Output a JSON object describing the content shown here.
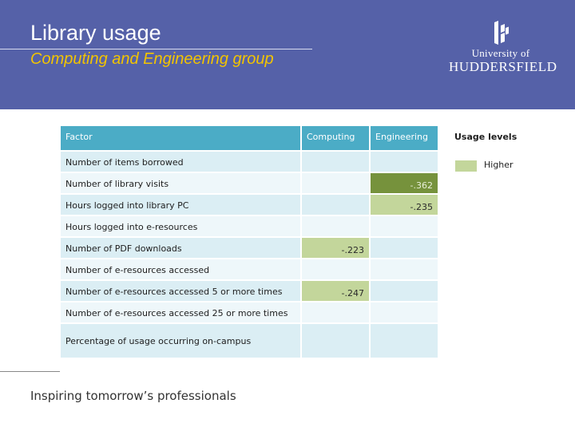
{
  "header": {
    "title": "Library usage",
    "subtitle": "Computing and Engineering group",
    "logo": {
      "line1": "University of",
      "line2": "HUDDERSFIELD",
      "icon": "university-crest-icon"
    }
  },
  "colors": {
    "header_bg": "#5561a8",
    "subtitle": "#f2c400",
    "table_header": "#4bacc6",
    "row_even": "#dbeef4",
    "row_odd": "#eef7fa",
    "highlight_strong": "#76923c",
    "highlight_light": "#c3d69b"
  },
  "table": {
    "headers": [
      "Factor",
      "Computing",
      "Engineering"
    ],
    "rows": [
      {
        "factor": "Number of items borrowed",
        "computing": "",
        "engineering": ""
      },
      {
        "factor": "Number of library visits",
        "computing": "",
        "engineering": "-.362"
      },
      {
        "factor": "Hours logged into library PC",
        "computing": "",
        "engineering": "-.235"
      },
      {
        "factor": "Hours logged into e-resources",
        "computing": "",
        "engineering": ""
      },
      {
        "factor": "Number of PDF downloads",
        "computing": "-.223",
        "engineering": ""
      },
      {
        "factor": "Number of e-resources accessed",
        "computing": "",
        "engineering": ""
      },
      {
        "factor": "Number of e-resources accessed 5 or more times",
        "computing": "-.247",
        "engineering": ""
      },
      {
        "factor": "Number of e-resources accessed 25 or more times",
        "computing": "",
        "engineering": ""
      },
      {
        "factor": "Percentage of usage occurring on-campus",
        "computing": "",
        "engineering": ""
      }
    ]
  },
  "legend": {
    "title": "Usage levels",
    "items": [
      {
        "label": "Higher",
        "color": "#c3d69b"
      }
    ]
  },
  "footer": {
    "tagline": "Inspiring tomorrow’s professionals"
  }
}
